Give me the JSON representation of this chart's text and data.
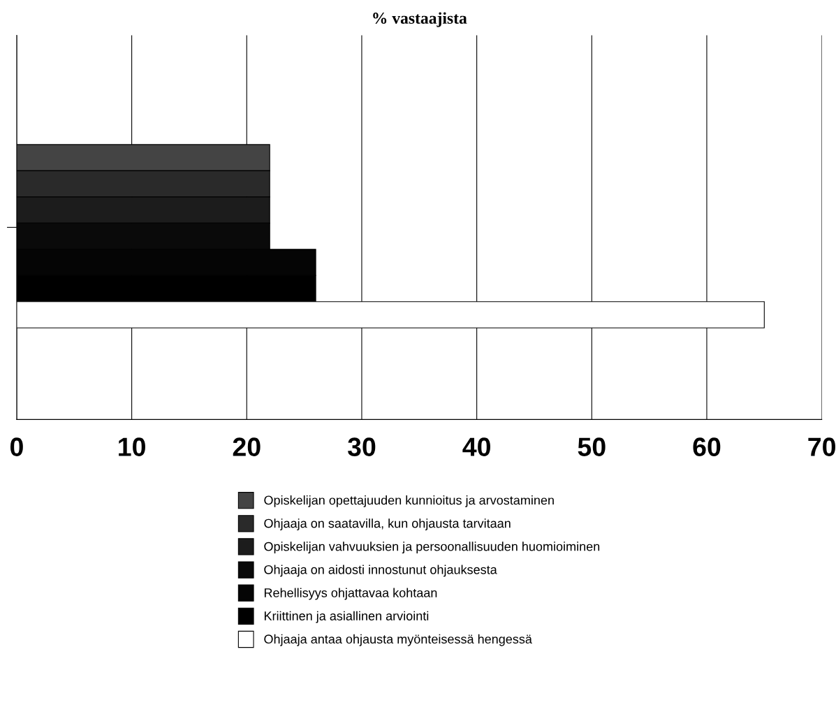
{
  "chart_data": {
    "type": "bar",
    "orientation": "horizontal",
    "title": "% vastaajista",
    "categories": [
      null
    ],
    "series": [
      {
        "name": "Opiskelijan opettajuuden kunnioitus ja arvostaminen",
        "color": "#444444",
        "values": [
          22
        ]
      },
      {
        "name": "Ohjaaja on saatavilla, kun ohjausta tarvitaan",
        "color": "#2a2a2a",
        "values": [
          22
        ]
      },
      {
        "name": "Opiskelijan vahvuuksien ja persoonallisuuden huomioiminen",
        "color": "#1c1c1c",
        "values": [
          22
        ]
      },
      {
        "name": "Ohjaaja on aidosti innostunut ohjauksesta",
        "color": "#0a0a0a",
        "values": [
          22
        ]
      },
      {
        "name": "Rehellisyys ohjattavaa kohtaan",
        "color": "#050505",
        "values": [
          26
        ]
      },
      {
        "name": "Kriittinen ja asiallinen arviointi",
        "color": "#000000",
        "values": [
          26
        ]
      },
      {
        "name": "Ohjaaja antaa ohjausta myönteisessä hengessä",
        "color": "#ffffff",
        "values": [
          65
        ]
      }
    ],
    "xlim": [
      0,
      70
    ],
    "xticks": [
      0,
      10,
      20,
      30,
      40,
      50,
      60,
      70
    ],
    "grid": "x",
    "legend": "bottom",
    "tick_labels": "x"
  }
}
